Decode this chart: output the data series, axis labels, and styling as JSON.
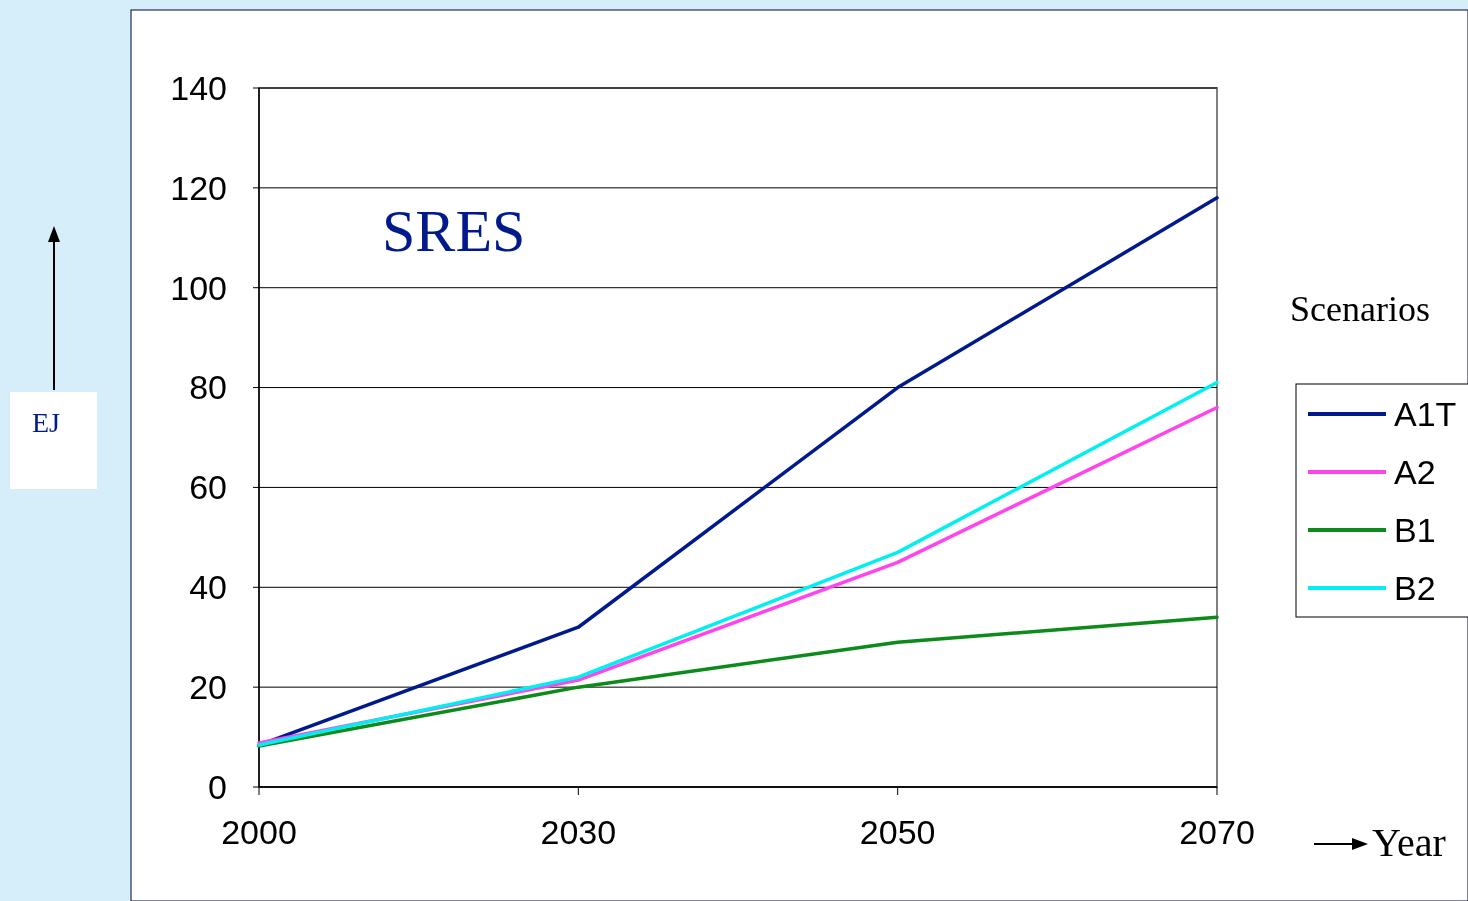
{
  "chart_data": {
    "type": "line",
    "categories": [
      "2000",
      "2030",
      "2050",
      "2070"
    ],
    "series": [
      {
        "name": "A1T",
        "color": "#001a8c",
        "values": [
          8.4,
          32,
          80,
          118
        ]
      },
      {
        "name": "A2",
        "color": "#ff44ee",
        "values": [
          8.8,
          21.4,
          45,
          76
        ]
      },
      {
        "name": "B1",
        "color": "#0c8a1a",
        "values": [
          8.2,
          20,
          29,
          34
        ]
      },
      {
        "name": "B2",
        "color": "#00f0f0",
        "values": [
          8.4,
          22,
          47,
          81
        ]
      }
    ],
    "ylim": [
      0,
      140
    ],
    "yticks": [
      0,
      20,
      40,
      60,
      80,
      100,
      120,
      140
    ],
    "grid": "y",
    "legend": "right",
    "legend_title": "Scenarios",
    "xlabel": "Year",
    "ylabel": "EJ",
    "annotations": [
      "SRES"
    ]
  }
}
